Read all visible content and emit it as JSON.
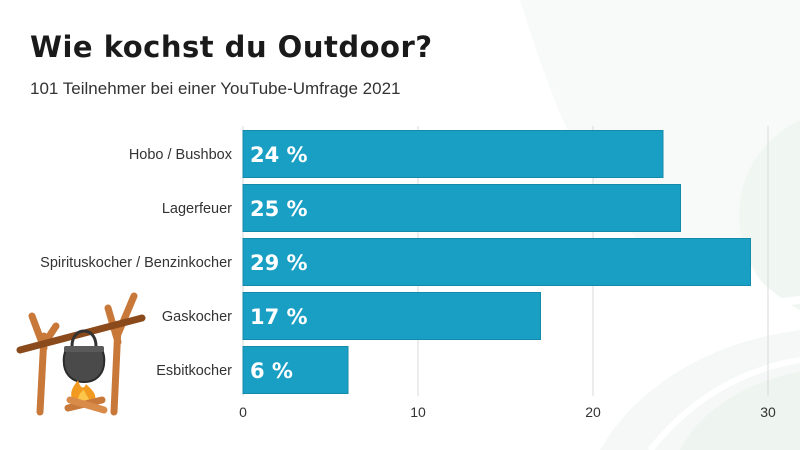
{
  "header": {
    "title": "Wie kochst du Outdoor?",
    "subtitle": "101 Teilnehmer bei einer YouTube-Umfrage 2021"
  },
  "colors": {
    "bar": "#1a9fc4",
    "bar_stroke": "#148aab",
    "grid": "#d9d9d9",
    "text": "#333333"
  },
  "illustration": {
    "icon": "campfire-cooking-pot-icon"
  },
  "chart_data": {
    "type": "bar",
    "orientation": "horizontal",
    "categories": [
      "Hobo / Bushbox",
      "Lagerfeuer",
      "Spirituskocher / Benzinkocher",
      "Gaskocher",
      "Esbitkocher"
    ],
    "values": [
      24,
      25,
      29,
      17,
      6
    ],
    "value_labels": [
      "24 %",
      "25 %",
      "29 %",
      "17 %",
      "6 %"
    ],
    "xlim": [
      0,
      30
    ],
    "xticks": [
      0,
      10,
      20,
      30
    ],
    "grid": true,
    "legend": "none"
  }
}
